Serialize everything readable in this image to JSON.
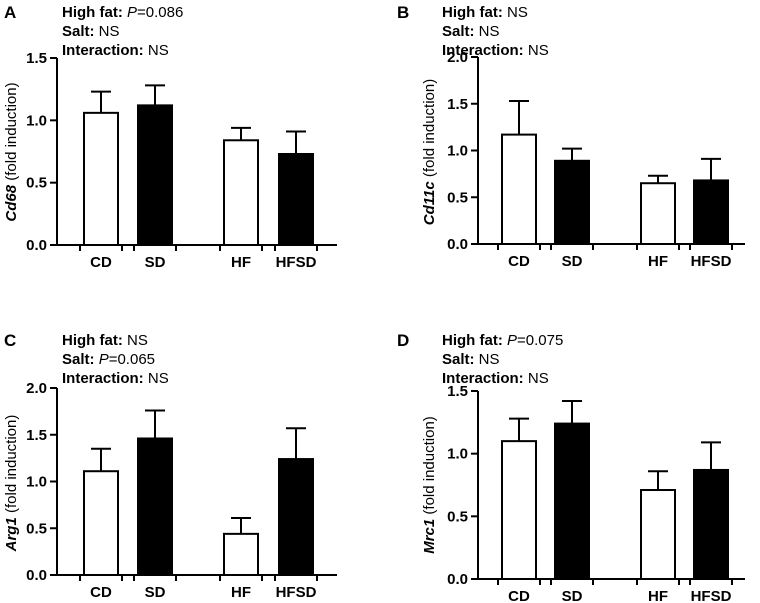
{
  "colors": {
    "open_bar": "#ffffff",
    "filled_bar": "#000000",
    "axis": "#000000"
  },
  "chart_data": [
    {
      "panel": "A",
      "type": "bar",
      "gene": "Cd68",
      "ylabel_suffix": " (fold induction)",
      "categories": [
        "CD",
        "SD",
        "HF",
        "HFSD"
      ],
      "fills": [
        "open",
        "filled",
        "open",
        "filled"
      ],
      "values": [
        1.06,
        1.12,
        0.84,
        0.73
      ],
      "errors": [
        0.17,
        0.16,
        0.1,
        0.18
      ],
      "ylim": [
        0,
        1.5
      ],
      "yticks": [
        "0.0",
        "0.5",
        "1.0",
        "1.5"
      ],
      "stats": [
        {
          "key": "High fat:",
          "p": "P",
          "value": "=0.086"
        },
        {
          "key": "Salt:",
          "p": "",
          "value": " NS"
        },
        {
          "key": "Interaction:",
          "p": "",
          "value": " NS"
        }
      ]
    },
    {
      "panel": "B",
      "type": "bar",
      "gene": "Cd11c",
      "ylabel_suffix": " (fold induction)",
      "categories": [
        "CD",
        "SD",
        "HF",
        "HFSD"
      ],
      "fills": [
        "open",
        "filled",
        "open",
        "filled"
      ],
      "values": [
        1.17,
        0.89,
        0.65,
        0.68
      ],
      "errors": [
        0.36,
        0.13,
        0.08,
        0.23
      ],
      "ylim": [
        0,
        2.0
      ],
      "yticks": [
        "0.0",
        "0.5",
        "1.0",
        "1.5",
        "2.0"
      ],
      "stats": [
        {
          "key": "High fat:",
          "p": "",
          "value": " NS"
        },
        {
          "key": "Salt:",
          "p": "",
          "value": " NS"
        },
        {
          "key": "Interaction:",
          "p": "",
          "value": " NS"
        }
      ]
    },
    {
      "panel": "C",
      "type": "bar",
      "gene": "Arg1",
      "ylabel_suffix": " (fold induction)",
      "categories": [
        "CD",
        "SD",
        "HF",
        "HFSD"
      ],
      "fills": [
        "open",
        "filled",
        "open",
        "filled"
      ],
      "values": [
        1.11,
        1.46,
        0.44,
        1.24
      ],
      "errors": [
        0.24,
        0.3,
        0.17,
        0.33
      ],
      "ylim": [
        0,
        2.0
      ],
      "yticks": [
        "0.0",
        "0.5",
        "1.0",
        "1.5",
        "2.0"
      ],
      "stats": [
        {
          "key": "High fat:",
          "p": "",
          "value": " NS"
        },
        {
          "key": "Salt:",
          "p": "P",
          "value": "=0.065"
        },
        {
          "key": "Interaction:",
          "p": "",
          "value": " NS"
        }
      ]
    },
    {
      "panel": "D",
      "type": "bar",
      "gene": "Mrc1",
      "ylabel_suffix": " (fold induction)",
      "categories": [
        "CD",
        "SD",
        "HF",
        "HFSD"
      ],
      "fills": [
        "open",
        "filled",
        "open",
        "filled"
      ],
      "values": [
        1.1,
        1.24,
        0.71,
        0.87
      ],
      "errors": [
        0.18,
        0.18,
        0.15,
        0.22
      ],
      "ylim": [
        0,
        1.5
      ],
      "yticks": [
        "0.0",
        "0.5",
        "1.0",
        "1.5"
      ],
      "stats": [
        {
          "key": "High fat:",
          "p": "P",
          "value": "=0.075"
        },
        {
          "key": "Salt:",
          "p": "",
          "value": " NS"
        },
        {
          "key": "Interaction:",
          "p": "",
          "value": " NS"
        }
      ]
    }
  ]
}
